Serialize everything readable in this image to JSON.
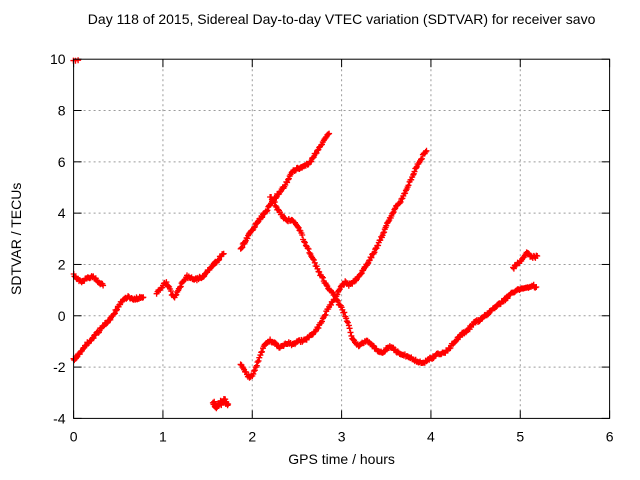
{
  "chart_data": {
    "type": "scatter",
    "title": "Day 118 of 2015, Sidereal Day-to-day VTEC variation (SDTVAR) for receiver savo",
    "xlabel": "GPS time / hours",
    "ylabel": "SDTVAR / TECUs",
    "xlim": [
      0,
      6
    ],
    "ylim": [
      -4,
      10
    ],
    "xticks": [
      "0",
      "1",
      "2",
      "3",
      "4",
      "5",
      "6"
    ],
    "yticks": [
      "-4",
      "-2",
      "0",
      "2",
      "4",
      "6",
      "8",
      "10"
    ],
    "grid": true,
    "legend_position": "none",
    "marker": "plus",
    "marker_color": "#ff0000",
    "background_color": "#ffffff",
    "border_color": "#000000",
    "grid_color": "#9b9b9b",
    "sample_step_hours": 0.009,
    "noise_tecu": 0.05,
    "series": [
      {
        "name": "clipped-point-at-0h-10tecu",
        "step": 0.025,
        "noise": 0.02,
        "points": [
          [
            0.0,
            9.96
          ],
          [
            0.05,
            9.96
          ]
        ]
      },
      {
        "name": "segment-0.0h-0.33h",
        "points": [
          [
            0.0,
            1.62
          ],
          [
            0.03,
            1.48
          ],
          [
            0.06,
            1.36
          ],
          [
            0.09,
            1.33
          ],
          [
            0.12,
            1.4
          ],
          [
            0.16,
            1.49
          ],
          [
            0.2,
            1.54
          ],
          [
            0.24,
            1.45
          ],
          [
            0.28,
            1.32
          ],
          [
            0.33,
            1.18
          ]
        ]
      },
      {
        "name": "segment-0.0h-0.78h",
        "points": [
          [
            0.0,
            -1.72
          ],
          [
            0.06,
            -1.5
          ],
          [
            0.12,
            -1.22
          ],
          [
            0.18,
            -0.98
          ],
          [
            0.24,
            -0.78
          ],
          [
            0.3,
            -0.52
          ],
          [
            0.36,
            -0.3
          ],
          [
            0.42,
            -0.08
          ],
          [
            0.47,
            0.18
          ],
          [
            0.52,
            0.48
          ],
          [
            0.56,
            0.66
          ],
          [
            0.6,
            0.73
          ],
          [
            0.64,
            0.69
          ],
          [
            0.68,
            0.66
          ],
          [
            0.73,
            0.7
          ],
          [
            0.78,
            0.72
          ]
        ]
      },
      {
        "name": "blob-1.6h-minus3.4tecu",
        "step": 0.007,
        "noise": 0.11,
        "points": [
          [
            1.56,
            -3.38
          ],
          [
            1.6,
            -3.5
          ],
          [
            1.63,
            -3.45
          ],
          [
            1.66,
            -3.35
          ],
          [
            1.69,
            -3.3
          ],
          [
            1.73,
            -3.44
          ]
        ]
      },
      {
        "name": "rise-0.93h-1.68h",
        "points": [
          [
            0.93,
            0.85
          ],
          [
            0.97,
            1.05
          ],
          [
            1.01,
            1.22
          ],
          [
            1.04,
            1.28
          ],
          [
            1.07,
            1.1
          ],
          [
            1.1,
            0.85
          ],
          [
            1.13,
            0.7
          ],
          [
            1.16,
            0.9
          ],
          [
            1.2,
            1.18
          ],
          [
            1.24,
            1.42
          ],
          [
            1.27,
            1.53
          ],
          [
            1.31,
            1.46
          ],
          [
            1.35,
            1.4
          ],
          [
            1.39,
            1.44
          ],
          [
            1.43,
            1.5
          ],
          [
            1.47,
            1.62
          ],
          [
            1.52,
            1.8
          ],
          [
            1.57,
            2.0
          ],
          [
            1.62,
            2.2
          ],
          [
            1.68,
            2.42
          ]
        ]
      },
      {
        "name": "rise-1.87h-2.86h-peak7.1",
        "points": [
          [
            1.87,
            2.6
          ],
          [
            1.92,
            2.9
          ],
          [
            1.97,
            3.2
          ],
          [
            2.02,
            3.45
          ],
          [
            2.07,
            3.7
          ],
          [
            2.12,
            3.92
          ],
          [
            2.16,
            4.1
          ],
          [
            2.2,
            4.32
          ],
          [
            2.24,
            4.52
          ],
          [
            2.28,
            4.72
          ],
          [
            2.32,
            4.88
          ],
          [
            2.36,
            5.05
          ],
          [
            2.4,
            5.3
          ],
          [
            2.44,
            5.58
          ],
          [
            2.48,
            5.7
          ],
          [
            2.53,
            5.77
          ],
          [
            2.58,
            5.83
          ],
          [
            2.62,
            5.92
          ],
          [
            2.66,
            6.05
          ],
          [
            2.7,
            6.28
          ],
          [
            2.74,
            6.5
          ],
          [
            2.78,
            6.72
          ],
          [
            2.82,
            6.92
          ],
          [
            2.86,
            7.1
          ]
        ]
      },
      {
        "name": "descent-2.2h-5.18h",
        "points": [
          [
            2.2,
            4.65
          ],
          [
            2.24,
            4.45
          ],
          [
            2.28,
            4.18
          ],
          [
            2.32,
            3.95
          ],
          [
            2.36,
            3.8
          ],
          [
            2.4,
            3.73
          ],
          [
            2.44,
            3.73
          ],
          [
            2.48,
            3.62
          ],
          [
            2.52,
            3.42
          ],
          [
            2.56,
            3.1
          ],
          [
            2.6,
            2.78
          ],
          [
            2.64,
            2.5
          ],
          [
            2.68,
            2.2
          ],
          [
            2.72,
            1.92
          ],
          [
            2.76,
            1.6
          ],
          [
            2.8,
            1.38
          ],
          [
            2.84,
            1.12
          ],
          [
            2.88,
            0.95
          ],
          [
            2.92,
            0.78
          ],
          [
            2.96,
            0.55
          ],
          [
            3.0,
            0.28
          ],
          [
            3.04,
            0.02
          ],
          [
            3.08,
            -0.4
          ],
          [
            3.12,
            -0.85
          ],
          [
            3.15,
            -1.05
          ],
          [
            3.18,
            -1.15
          ],
          [
            3.22,
            -1.1
          ],
          [
            3.26,
            -1.0
          ],
          [
            3.3,
            -1.02
          ],
          [
            3.34,
            -1.12
          ],
          [
            3.38,
            -1.28
          ],
          [
            3.42,
            -1.38
          ],
          [
            3.46,
            -1.42
          ],
          [
            3.5,
            -1.3
          ],
          [
            3.54,
            -1.22
          ],
          [
            3.58,
            -1.28
          ],
          [
            3.62,
            -1.4
          ],
          [
            3.66,
            -1.48
          ],
          [
            3.7,
            -1.52
          ],
          [
            3.74,
            -1.58
          ],
          [
            3.78,
            -1.65
          ],
          [
            3.82,
            -1.72
          ],
          [
            3.86,
            -1.8
          ],
          [
            3.9,
            -1.82
          ],
          [
            3.94,
            -1.78
          ],
          [
            3.98,
            -1.7
          ],
          [
            4.03,
            -1.6
          ],
          [
            4.08,
            -1.5
          ],
          [
            4.12,
            -1.48
          ],
          [
            4.16,
            -1.4
          ],
          [
            4.2,
            -1.28
          ],
          [
            4.25,
            -1.05
          ],
          [
            4.3,
            -0.88
          ],
          [
            4.35,
            -0.7
          ],
          [
            4.4,
            -0.62
          ],
          [
            4.45,
            -0.4
          ],
          [
            4.5,
            -0.22
          ],
          [
            4.55,
            -0.18
          ],
          [
            4.6,
            -0.02
          ],
          [
            4.65,
            0.12
          ],
          [
            4.7,
            0.25
          ],
          [
            4.75,
            0.4
          ],
          [
            4.8,
            0.55
          ],
          [
            4.85,
            0.7
          ],
          [
            4.9,
            0.85
          ],
          [
            4.94,
            0.97
          ],
          [
            4.98,
            1.03
          ],
          [
            5.02,
            1.07
          ],
          [
            5.06,
            1.1
          ],
          [
            5.1,
            1.1
          ],
          [
            5.14,
            1.18
          ],
          [
            5.18,
            1.12
          ]
        ]
      },
      {
        "name": "rise-1.87h-3.95h-peak6.4",
        "points": [
          [
            1.87,
            -1.88
          ],
          [
            1.91,
            -2.1
          ],
          [
            1.95,
            -2.35
          ],
          [
            1.98,
            -2.42
          ],
          [
            2.01,
            -2.25
          ],
          [
            2.04,
            -2.0
          ],
          [
            2.07,
            -1.72
          ],
          [
            2.1,
            -1.45
          ],
          [
            2.13,
            -1.22
          ],
          [
            2.16,
            -1.05
          ],
          [
            2.2,
            -0.95
          ],
          [
            2.24,
            -1.05
          ],
          [
            2.28,
            -1.18
          ],
          [
            2.32,
            -1.22
          ],
          [
            2.36,
            -1.12
          ],
          [
            2.4,
            -1.07
          ],
          [
            2.44,
            -1.12
          ],
          [
            2.48,
            -1.1
          ],
          [
            2.52,
            -0.95
          ],
          [
            2.56,
            -1.0
          ],
          [
            2.6,
            -0.93
          ],
          [
            2.64,
            -0.82
          ],
          [
            2.68,
            -0.72
          ],
          [
            2.72,
            -0.55
          ],
          [
            2.76,
            -0.32
          ],
          [
            2.8,
            -0.05
          ],
          [
            2.84,
            0.22
          ],
          [
            2.88,
            0.45
          ],
          [
            2.92,
            0.68
          ],
          [
            2.96,
            0.9
          ],
          [
            3.0,
            1.15
          ],
          [
            3.04,
            1.3
          ],
          [
            3.08,
            1.22
          ],
          [
            3.12,
            1.28
          ],
          [
            3.16,
            1.38
          ],
          [
            3.2,
            1.58
          ],
          [
            3.25,
            1.82
          ],
          [
            3.3,
            2.1
          ],
          [
            3.35,
            2.4
          ],
          [
            3.4,
            2.72
          ],
          [
            3.45,
            3.1
          ],
          [
            3.5,
            3.5
          ],
          [
            3.55,
            3.85
          ],
          [
            3.6,
            4.2
          ],
          [
            3.64,
            4.38
          ],
          [
            3.68,
            4.55
          ],
          [
            3.72,
            4.9
          ],
          [
            3.76,
            5.2
          ],
          [
            3.8,
            5.5
          ],
          [
            3.85,
            5.9
          ],
          [
            3.89,
            6.1
          ],
          [
            3.92,
            6.3
          ],
          [
            3.95,
            6.43
          ]
        ]
      },
      {
        "name": "segment-4.92h-5.19h",
        "points": [
          [
            4.92,
            1.85
          ],
          [
            4.96,
            2.0
          ],
          [
            5.0,
            2.12
          ],
          [
            5.04,
            2.28
          ],
          [
            5.07,
            2.42
          ],
          [
            5.1,
            2.38
          ],
          [
            5.13,
            2.3
          ],
          [
            5.16,
            2.28
          ],
          [
            5.19,
            2.33
          ]
        ]
      }
    ]
  }
}
